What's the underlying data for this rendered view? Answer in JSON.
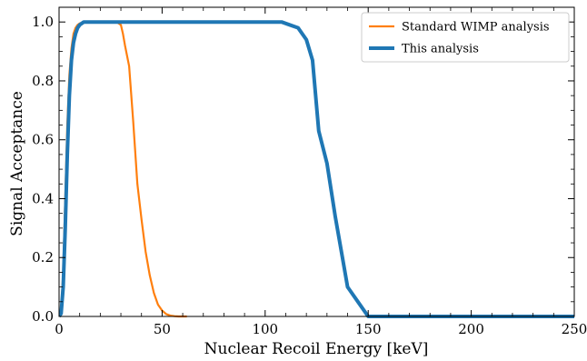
{
  "chart_data": {
    "type": "line",
    "xlabel": "Nuclear Recoil Energy [keV]",
    "ylabel": "Signal Acceptance",
    "xlim": [
      0,
      250
    ],
    "ylim": [
      0,
      1.05
    ],
    "x_ticks": [
      0,
      50,
      100,
      150,
      200,
      250
    ],
    "y_ticks": [
      0.0,
      0.2,
      0.4,
      0.6,
      0.8,
      1.0
    ],
    "x_tick_labels": [
      "0",
      "50",
      "100",
      "150",
      "200",
      "250"
    ],
    "y_tick_labels": [
      "0.0",
      "0.2",
      "0.4",
      "0.6",
      "0.8",
      "1.0"
    ],
    "grid": false,
    "legend_position": "top-right",
    "series": [
      {
        "name": "Standard WIMP analysis",
        "color": "#ff7f0e",
        "x": [
          0,
          1,
          2,
          3,
          4,
          5,
          6,
          7,
          8,
          9,
          10,
          12,
          15,
          20,
          25,
          28,
          30,
          31,
          32,
          34,
          36,
          38,
          40,
          42,
          44,
          46,
          48,
          50,
          52,
          54,
          56,
          58,
          60,
          62
        ],
        "y": [
          0,
          0.02,
          0.15,
          0.4,
          0.65,
          0.82,
          0.91,
          0.96,
          0.98,
          0.99,
          0.995,
          1.0,
          1.0,
          1.0,
          1.0,
          1.0,
          0.99,
          0.96,
          0.92,
          0.85,
          0.66,
          0.45,
          0.33,
          0.22,
          0.14,
          0.08,
          0.04,
          0.02,
          0.008,
          0.003,
          0.001,
          0,
          0,
          0
        ]
      },
      {
        "name": "This analysis",
        "color": "#1f77b4",
        "x": [
          0,
          1,
          2,
          3,
          4,
          5,
          6,
          7,
          8,
          9,
          10,
          12,
          15,
          20,
          50,
          100,
          108,
          112,
          116,
          120,
          123,
          126,
          130,
          134,
          140,
          145,
          150,
          155,
          160,
          200,
          250
        ],
        "y": [
          0,
          0.01,
          0.1,
          0.3,
          0.55,
          0.75,
          0.87,
          0.93,
          0.96,
          0.98,
          0.99,
          1.0,
          1.0,
          1.0,
          1.0,
          1.0,
          1.0,
          0.99,
          0.98,
          0.94,
          0.87,
          0.63,
          0.52,
          0.34,
          0.1,
          0.05,
          0.0,
          0.0,
          0.0,
          0.0,
          0.0
        ]
      }
    ]
  }
}
